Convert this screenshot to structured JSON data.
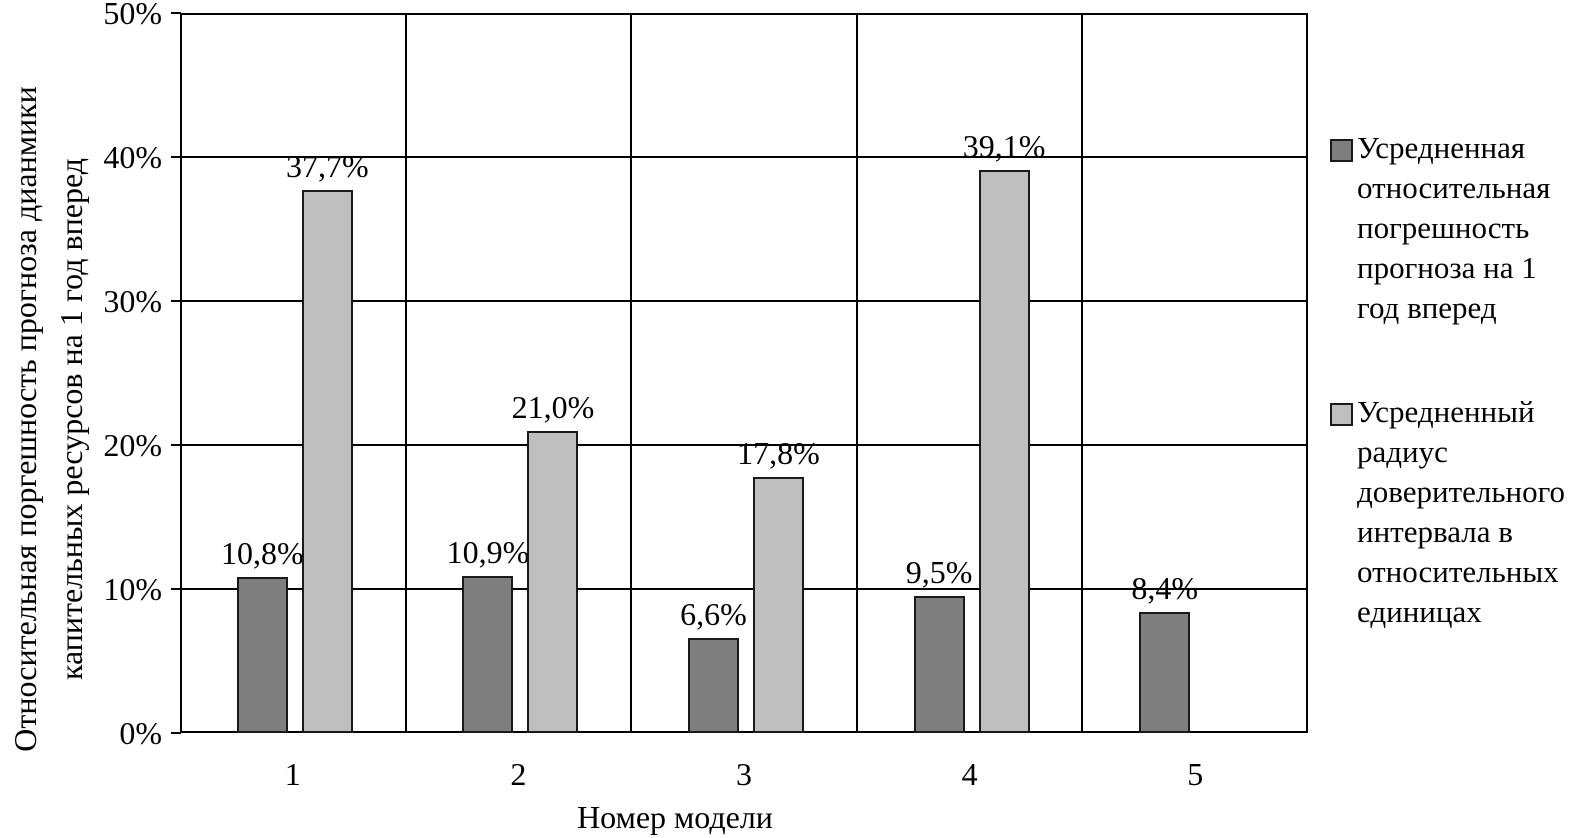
{
  "colors": {
    "background": "#ffffff",
    "text": "#000000",
    "grid": "#000000",
    "bar_border": "#1a1a1a",
    "series1_fill": "#7f7f7f",
    "series2_fill": "#bfbfbf"
  },
  "y_axis": {
    "title_line1": "Относительная поргешность прогноза дианмики",
    "title_line2": "капительных ресурсов на 1 год вперед",
    "ticks": [
      "0%",
      "10%",
      "20%",
      "30%",
      "40%",
      "50%"
    ]
  },
  "x_axis": {
    "title": "Номер модели",
    "categories": [
      "1",
      "2",
      "3",
      "4",
      "5"
    ]
  },
  "legend": {
    "items": [
      {
        "swatch_color": "#7f7f7f",
        "lines": [
          "Усредненная",
          "относительная",
          "погрешность",
          "прогноза на 1",
          "год вперед"
        ]
      },
      {
        "swatch_color": "#bfbfbf",
        "lines": [
          "Усредненный",
          "радиус",
          "доверительного",
          "интервала в",
          "относительных",
          "единицах"
        ]
      }
    ]
  },
  "chart_data": {
    "type": "bar",
    "categories": [
      "1",
      "2",
      "3",
      "4",
      "5"
    ],
    "series": [
      {
        "name": "Усредненная относительная погрешность прогноза на 1 год вперед",
        "color": "#7f7f7f",
        "values": [
          10.8,
          10.9,
          6.6,
          9.5,
          8.4
        ],
        "labels": [
          "10,8%",
          "10,9%",
          "6,6%",
          "9,5%",
          "8,4%"
        ]
      },
      {
        "name": "Усредненный радиус доверительного интервала в относительных единицах",
        "color": "#bfbfbf",
        "values": [
          37.7,
          21.0,
          17.8,
          39.1,
          null
        ],
        "labels": [
          "37,7%",
          "21,0%",
          "17,8%",
          "39,1%",
          null
        ]
      }
    ],
    "title": "",
    "xlabel": "Номер модели",
    "ylabel": "Относительная поргешность прогноза дианмики капительных ресурсов на 1 год вперед",
    "ylim": [
      0,
      50
    ],
    "ytick_step": 10,
    "grid": true,
    "legend_position": "right",
    "value_format": "comma-decimal-percent"
  }
}
